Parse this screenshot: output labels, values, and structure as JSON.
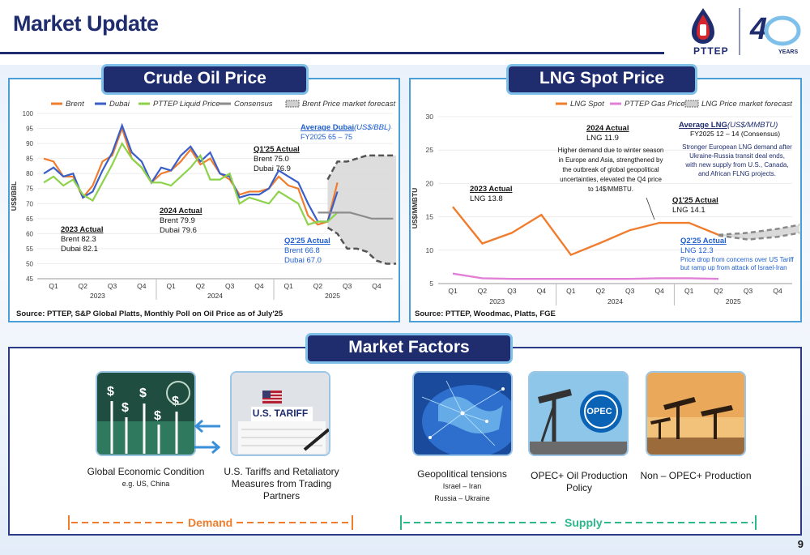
{
  "page": {
    "title": "Market Update",
    "page_number": "9",
    "logo_brand": "PTTEP",
    "logo_anniversary_text": "YEARS"
  },
  "crude": {
    "panel_title": "Crude Oil Price",
    "source": "Source: PTTEP, S&P Global Platts, Monthly Poll on Oil Price as of July'25",
    "legend": [
      "Brent",
      "Dubai",
      "PTTEP Liquid Price",
      "Consensus",
      "Brent Price market forecast"
    ],
    "ylabel": "US$/BBL",
    "yticks": [
      "100",
      "95",
      "90",
      "85",
      "80",
      "75",
      "70",
      "65",
      "60",
      "55",
      "50",
      "45"
    ],
    "xticks": [
      "Q1",
      "Q2",
      "Q3",
      "Q4",
      "Q1",
      "Q2",
      "Q3",
      "Q4",
      "Q1",
      "Q2",
      "Q3",
      "Q4"
    ],
    "years": [
      "2023",
      "2024",
      "2025"
    ],
    "ann_2023": {
      "title": "2023 Actual",
      "l1": "Brent    82.3",
      "l2": "Dubai    82.1"
    },
    "ann_2024": {
      "title": "2024 Actual",
      "l1": "Brent    79.9",
      "l2": "Dubai    79.6"
    },
    "ann_q125": {
      "title": "Q1'25 Actual",
      "l1": "Brent    75.0",
      "l2": "Dubai    76.9"
    },
    "ann_q225": {
      "title": "Q2'25 Actual",
      "l1": "Brent     66.8",
      "l2": "Dubai    67.0"
    },
    "ann_avg": {
      "title": "Average Dubai",
      "unit": " (US$/BBL)",
      "l1": "FY2025    65 – 75"
    },
    "colors": {
      "brent": "#f07d2e",
      "dubai": "#3a5fc8",
      "pttep": "#8cd34a",
      "consensus": "#8c8c8c",
      "forecast": "#555555"
    }
  },
  "lng": {
    "panel_title": "LNG Spot Price",
    "source": "Source: PTTEP, Woodmac, Platts, FGE",
    "legend": [
      "LNG Spot",
      "PTTEP Gas Price",
      "LNG Price market forecast"
    ],
    "ylabel": "US$/MMBTU",
    "yticks": [
      "30",
      "25",
      "20",
      "15",
      "10",
      "5"
    ],
    "xticks": [
      "Q1",
      "Q2",
      "Q3",
      "Q4",
      "Q1",
      "Q2",
      "Q3",
      "Q4",
      "Q1",
      "Q2",
      "Q3",
      "Q4"
    ],
    "years": [
      "2023",
      "2024",
      "2025"
    ],
    "ann_2023": {
      "title": "2023 Actual",
      "l1": "LNG   13.8"
    },
    "ann_2024": {
      "title": "2024 Actual",
      "l1": "LNG   11.9",
      "note": [
        "Higher demand due to winter season",
        "in Europe and Asia, strengthened by",
        "the outbreak of global geopolitical",
        "uncertainties, elevated the Q4 price",
        "to 14$/MMBTU."
      ]
    },
    "ann_q125": {
      "title": "Q1'25 Actual",
      "l1": "LNG  14.1"
    },
    "ann_q225": {
      "title": "Q2'25 Actual",
      "l1": "LNG    12.3",
      "note": [
        "Price drop from concerns over US Tariff",
        "but ramp up from attack of Israel-Iran"
      ]
    },
    "ann_avg": {
      "title": "Average LNG",
      "unit": " (US$/MMBTU)",
      "l1": "FY2025  12 – 14 (Consensus)",
      "note": [
        "Stronger European LNG demand after",
        "Ukraine-Russia transit deal ends,",
        "with new supply from U.S., Canada,",
        "and African FLNG projects."
      ]
    },
    "colors": {
      "spot": "#f07d2e",
      "pttep": "#e27fd6",
      "forecast": "#888888"
    }
  },
  "chart_data": [
    {
      "type": "line",
      "title": "Crude Oil Price",
      "ylabel": "US$/BBL",
      "ylim": [
        45,
        100
      ],
      "x_axis": "monthly, Jan 2023 – Dec 2025 (quarters Q1–Q4)",
      "series": [
        {
          "name": "Brent",
          "values": [
            85,
            84,
            79,
            79,
            72,
            76,
            84,
            86,
            95,
            85,
            82,
            77,
            80,
            81,
            84,
            88,
            83,
            85,
            80,
            78,
            73,
            74,
            74,
            75,
            79,
            76,
            75,
            66,
            63,
            64,
            77
          ]
        },
        {
          "name": "Dubai",
          "values": [
            80,
            82,
            79,
            80,
            72,
            74,
            81,
            87,
            96,
            87,
            84,
            77,
            82,
            81,
            86,
            89,
            84,
            87,
            80,
            79,
            72,
            73,
            73,
            75,
            81,
            79,
            77,
            70,
            64,
            64,
            74
          ]
        },
        {
          "name": "PTTEP Liquid Price",
          "values": [
            77,
            79,
            76,
            78,
            73,
            71,
            77,
            83,
            90,
            85,
            82,
            77,
            77,
            76,
            79,
            82,
            86,
            78,
            78,
            80,
            70,
            72,
            71,
            70,
            74,
            72,
            70,
            63,
            64,
            64,
            67
          ]
        },
        {
          "name": "Consensus",
          "values": [
            67,
            67,
            67,
            67,
            66,
            65,
            65,
            65
          ]
        },
        {
          "name": "Brent Price market forecast",
          "upper": [
            78,
            84,
            84,
            85,
            86,
            86,
            86,
            86
          ],
          "lower": [
            62,
            60,
            55,
            55,
            54,
            51,
            50,
            50
          ]
        }
      ]
    },
    {
      "type": "line",
      "title": "LNG Spot Price",
      "ylabel": "US$/MMBTU",
      "ylim": [
        5,
        30
      ],
      "x_axis": "quarterly, Q1 2023 – Q4 2025",
      "series": [
        {
          "name": "LNG Spot",
          "values": [
            16.5,
            11.0,
            12.6,
            15.3,
            9.3,
            11.1,
            13.0,
            14.1,
            14.1,
            12.3
          ]
        },
        {
          "name": "PTTEP Gas Price",
          "values": [
            6.5,
            5.8,
            5.7,
            5.7,
            5.7,
            5.7,
            5.7,
            5.8,
            5.8,
            5.7
          ]
        },
        {
          "name": "LNG Price market forecast",
          "upper": [
            12.3,
            12.6,
            13.2,
            14.0
          ],
          "lower": [
            12.2,
            11.6,
            12.0,
            12.8
          ]
        }
      ]
    }
  ],
  "factors": {
    "panel_title": "Market Factors",
    "cards": [
      {
        "title": "Global Economic Condition",
        "sub": "e.g. US, China"
      },
      {
        "title": "U.S. Tariffs and Retaliatory Measures from Trading Partners",
        "sub": ""
      },
      {
        "title": "Geopolitical tensions",
        "sub": "Israel – Iran",
        "sub2": "Russia – Ukraine"
      },
      {
        "title": "OPEC+ Oil Production Policy",
        "sub": ""
      },
      {
        "title": "Non – OPEC+ Production",
        "sub": ""
      }
    ],
    "tariff_sign": "U.S. TARIFF",
    "opec_sign": "OPEC",
    "demand_label": "Demand",
    "supply_label": "Supply",
    "demand_color": "#f07d2e",
    "supply_color": "#2bb88c"
  }
}
